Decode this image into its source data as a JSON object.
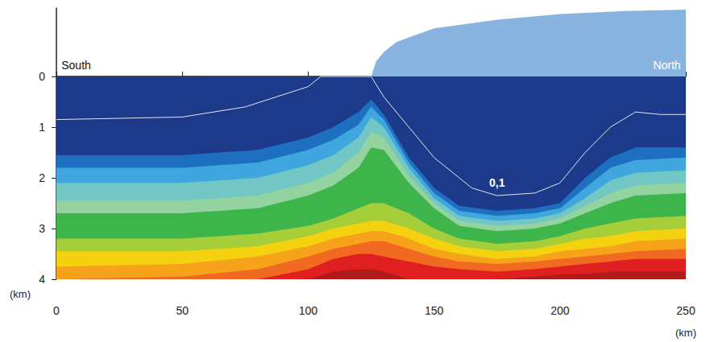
{
  "chart_data": {
    "type": "contour",
    "x_label": "(km)",
    "y_label": "(km)",
    "xlim": [
      0,
      250
    ],
    "xticks": [
      0,
      50,
      100,
      150,
      200,
      250
    ],
    "ylim": [
      -1.35,
      4
    ],
    "yticks": [
      0,
      1,
      2,
      3,
      4
    ],
    "x": [
      0,
      50,
      80,
      100,
      110,
      120,
      125,
      130,
      140,
      150,
      160,
      175,
      190,
      200,
      210,
      220,
      230,
      250
    ],
    "bands": [
      {
        "color": "#1d3a8a",
        "depth": [
          0,
          0,
          0,
          0,
          0,
          0,
          0,
          0,
          0,
          0,
          0,
          0,
          0,
          0,
          0,
          0,
          0,
          0
        ]
      },
      {
        "color": "#1f6fc0",
        "depth": [
          1.55,
          1.55,
          1.45,
          1.2,
          1.0,
          0.7,
          0.45,
          0.75,
          1.6,
          2.2,
          2.55,
          2.65,
          2.6,
          2.5,
          2.0,
          1.6,
          1.4,
          1.4
        ]
      },
      {
        "color": "#3fa7dd",
        "depth": [
          1.8,
          1.8,
          1.7,
          1.45,
          1.25,
          0.95,
          0.6,
          0.85,
          1.7,
          2.3,
          2.65,
          2.75,
          2.7,
          2.6,
          2.2,
          1.8,
          1.65,
          1.6
        ]
      },
      {
        "color": "#72c6c4",
        "depth": [
          2.1,
          2.1,
          2.0,
          1.75,
          1.55,
          1.2,
          0.8,
          1.0,
          1.8,
          2.4,
          2.75,
          2.85,
          2.8,
          2.7,
          2.4,
          2.05,
          1.9,
          1.85
        ]
      },
      {
        "color": "#93d3a0",
        "depth": [
          2.45,
          2.45,
          2.35,
          2.1,
          1.9,
          1.5,
          1.1,
          1.2,
          1.95,
          2.5,
          2.85,
          2.95,
          2.9,
          2.8,
          2.55,
          2.3,
          2.15,
          2.1
        ]
      },
      {
        "color": "#3eb54a",
        "depth": [
          2.7,
          2.7,
          2.6,
          2.35,
          2.15,
          1.8,
          1.4,
          1.45,
          2.1,
          2.6,
          2.95,
          3.05,
          3.0,
          2.9,
          2.7,
          2.5,
          2.35,
          2.3
        ]
      },
      {
        "color": "#a6ce39",
        "depth": [
          3.2,
          3.2,
          3.1,
          2.95,
          2.8,
          2.6,
          2.5,
          2.5,
          2.7,
          3.0,
          3.2,
          3.3,
          3.25,
          3.15,
          3.0,
          2.9,
          2.8,
          2.75
        ]
      },
      {
        "color": "#f5d20f",
        "depth": [
          3.45,
          3.45,
          3.35,
          3.15,
          3.0,
          2.9,
          2.85,
          2.85,
          3.0,
          3.2,
          3.35,
          3.45,
          3.4,
          3.3,
          3.2,
          3.15,
          3.05,
          3.0
        ]
      },
      {
        "color": "#f7a21b",
        "depth": [
          3.75,
          3.7,
          3.55,
          3.35,
          3.2,
          3.1,
          3.05,
          3.05,
          3.2,
          3.4,
          3.5,
          3.6,
          3.55,
          3.45,
          3.4,
          3.35,
          3.25,
          3.2
        ]
      },
      {
        "color": "#f26a21",
        "depth": [
          4.0,
          3.95,
          3.8,
          3.55,
          3.4,
          3.3,
          3.25,
          3.25,
          3.4,
          3.55,
          3.65,
          3.7,
          3.65,
          3.6,
          3.55,
          3.5,
          3.45,
          3.4
        ]
      },
      {
        "color": "#e02020",
        "depth": [
          4.0,
          4.0,
          4.0,
          3.8,
          3.6,
          3.5,
          3.5,
          3.55,
          3.65,
          3.75,
          3.8,
          3.85,
          3.8,
          3.75,
          3.7,
          3.65,
          3.6,
          3.6
        ]
      },
      {
        "color": "#b01a1a",
        "depth": [
          4.0,
          4.0,
          4.0,
          4.0,
          3.85,
          3.8,
          3.8,
          3.85,
          4.0,
          4.0,
          4.0,
          4.0,
          3.95,
          3.9,
          3.9,
          3.85,
          3.85,
          3.85
        ]
      }
    ],
    "ice": {
      "color": "#8ab4e0",
      "x": [
        125,
        127,
        130,
        135,
        150,
        175,
        200,
        225,
        250
      ],
      "y": [
        0,
        -0.3,
        -0.48,
        -0.68,
        -0.95,
        -1.12,
        -1.23,
        -1.29,
        -1.32
      ]
    },
    "contour": {
      "label": "0,1",
      "color": "#e6e6f0",
      "x": [
        0,
        50,
        75,
        100,
        105,
        125,
        130,
        140,
        150,
        160,
        165,
        175,
        190,
        200,
        210,
        220,
        230,
        240,
        250
      ],
      "y": [
        0.85,
        0.8,
        0.6,
        0.2,
        0.0,
        0.0,
        0.4,
        1.0,
        1.6,
        2.0,
        2.2,
        2.35,
        2.3,
        2.1,
        1.5,
        1.0,
        0.7,
        0.75,
        0.75
      ]
    },
    "annotations": [
      {
        "text": "South",
        "x": 2,
        "y": -0.22
      },
      {
        "text": "North",
        "x": 237,
        "y": -0.22
      }
    ]
  }
}
